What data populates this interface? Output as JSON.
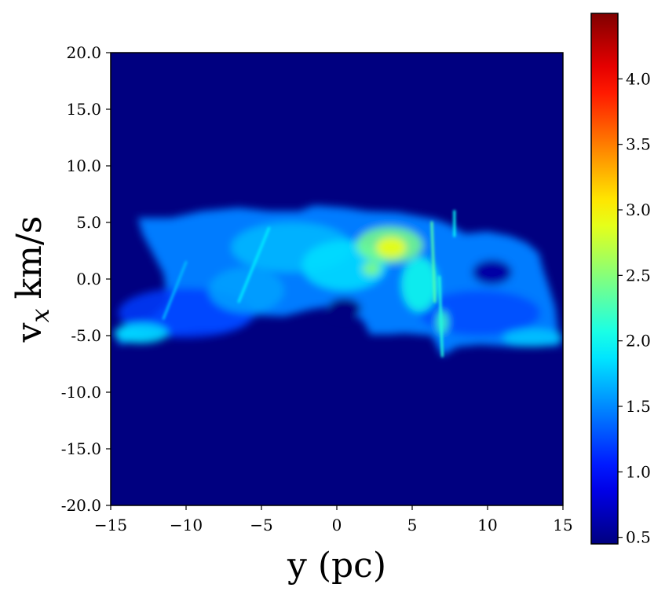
{
  "chart_data": {
    "type": "heatmap",
    "title": "",
    "xlabel": "y (pc)",
    "ylabel_main": "v",
    "ylabel_sub": "x",
    "ylabel_unit": "km/s",
    "xlim": [
      -15,
      15
    ],
    "ylim": [
      -20,
      20
    ],
    "xticks": [
      -15,
      -10,
      -5,
      0,
      5,
      10,
      15
    ],
    "xtick_labels": [
      "−15",
      "−10",
      "−5",
      "0",
      "5",
      "10",
      "15"
    ],
    "yticks": [
      20,
      15,
      10,
      5,
      0,
      -5,
      -10,
      -15,
      -20
    ],
    "ytick_labels": [
      "20.0",
      "15.0",
      "10.0",
      "5.0",
      "0.0",
      "-5.0",
      "-10.0",
      "-15.0",
      "-20.0"
    ],
    "colorbar": {
      "colormap": "jet",
      "range": [
        0.45,
        4.5
      ],
      "ticks": [
        4.0,
        3.5,
        3.0,
        2.5,
        2.0,
        1.5,
        1.0,
        0.5
      ],
      "tick_labels": [
        "4.0",
        "3.5",
        "3.0",
        "2.5",
        "2.0",
        "1.5",
        "1.0",
        "0.5"
      ]
    },
    "background_value": 0.45,
    "structure_outline": [
      [
        -14.5,
        -5.8
      ],
      [
        -14.5,
        -4.3
      ],
      [
        -13.6,
        -3.8
      ],
      [
        -12.3,
        -3.4
      ],
      [
        -11.2,
        -2.0
      ],
      [
        -11.5,
        0.5
      ],
      [
        -12.9,
        4.0
      ],
      [
        -13.2,
        5.4
      ],
      [
        -11.0,
        5.4
      ],
      [
        -9.0,
        6.0
      ],
      [
        -6.5,
        6.3
      ],
      [
        -4.5,
        6.0
      ],
      [
        -2.5,
        6.0
      ],
      [
        -1.5,
        6.5
      ],
      [
        0.5,
        6.3
      ],
      [
        2.0,
        6.0
      ],
      [
        4.0,
        5.9
      ],
      [
        6.5,
        5.3
      ],
      [
        7.5,
        4.8
      ],
      [
        8.5,
        4.0
      ],
      [
        10.0,
        4.2
      ],
      [
        11.5,
        3.8
      ],
      [
        12.6,
        3.2
      ],
      [
        13.4,
        2.3
      ],
      [
        13.7,
        0.8
      ],
      [
        14.1,
        -0.8
      ],
      [
        14.5,
        -2.5
      ],
      [
        14.8,
        -5.9
      ],
      [
        12.0,
        -6.0
      ],
      [
        9.5,
        -5.8
      ],
      [
        8.0,
        -6.0
      ],
      [
        7.0,
        -6.8
      ],
      [
        6.3,
        -5.0
      ],
      [
        4.5,
        -4.8
      ],
      [
        3.5,
        -4.9
      ],
      [
        2.2,
        -4.9
      ],
      [
        1.8,
        -3.8
      ],
      [
        0.9,
        -2.8
      ],
      [
        0.0,
        -2.3
      ],
      [
        -1.8,
        -2.7
      ],
      [
        -3.5,
        -3.3
      ],
      [
        -5.3,
        -3.2
      ],
      [
        -6.3,
        -4.2
      ],
      [
        -7.6,
        -4.6
      ],
      [
        -9.0,
        -4.6
      ],
      [
        -10.5,
        -4.8
      ],
      [
        -12.5,
        -5.3
      ],
      [
        -14.5,
        -5.8
      ]
    ],
    "structure_holes": [
      {
        "y": 0.5,
        "vx": -2.6,
        "ry": 1.1,
        "rvx": 0.9,
        "value": 0.45
      },
      {
        "y": 10.3,
        "vx": 0.6,
        "ry": 1.3,
        "rvx": 1.1,
        "value": 0.6
      }
    ],
    "structure_features": [
      {
        "y": -10.0,
        "vx": -3.0,
        "ry": 4.5,
        "rvx": 2.2,
        "value": 1.2
      },
      {
        "y": 9.5,
        "vx": -3.0,
        "ry": 4.0,
        "rvx": 2.0,
        "value": 1.25
      },
      {
        "y": -13.0,
        "vx": -4.8,
        "ry": 1.8,
        "rvx": 0.9,
        "value": 1.85
      },
      {
        "y": 13.0,
        "vx": -5.2,
        "ry": 2.0,
        "rvx": 0.8,
        "value": 1.75
      },
      {
        "y": -3.0,
        "vx": 2.8,
        "ry": 4.0,
        "rvx": 2.2,
        "value": 1.7
      },
      {
        "y": 0.5,
        "vx": 1.2,
        "ry": 2.8,
        "rvx": 2.2,
        "value": 1.85
      },
      {
        "y": -6.0,
        "vx": -1.0,
        "ry": 2.5,
        "rvx": 2.0,
        "value": 1.6
      },
      {
        "y": 3.5,
        "vx": 3.0,
        "ry": 2.2,
        "rvx": 1.6,
        "value": 2.45
      },
      {
        "y": 3.6,
        "vx": 2.8,
        "ry": 1.0,
        "rvx": 0.9,
        "value": 2.95
      },
      {
        "y": 2.3,
        "vx": 0.9,
        "ry": 0.6,
        "rvx": 0.6,
        "value": 2.5
      },
      {
        "y": 5.5,
        "vx": -0.5,
        "ry": 1.2,
        "rvx": 2.4,
        "value": 2.05
      },
      {
        "y": 7.0,
        "vx": -3.8,
        "ry": 0.4,
        "rvx": 1.0,
        "value": 2.2
      }
    ],
    "structure_streaks": [
      {
        "y1": 6.3,
        "vx1": 5.0,
        "y2": 6.5,
        "vx2": -2.0,
        "value": 2.3
      },
      {
        "y1": 6.8,
        "vx1": 0.2,
        "y2": 7.0,
        "vx2": -6.8,
        "value": 2.1
      },
      {
        "y1": 7.8,
        "vx1": 6.0,
        "y2": 7.8,
        "vx2": 3.8,
        "value": 2.0
      },
      {
        "y1": -10.0,
        "vx1": 1.5,
        "y2": -11.5,
        "vx2": -3.5,
        "value": 1.7
      },
      {
        "y1": -4.5,
        "vx1": 4.5,
        "y2": -6.5,
        "vx2": -2.0,
        "value": 1.9
      }
    ]
  }
}
